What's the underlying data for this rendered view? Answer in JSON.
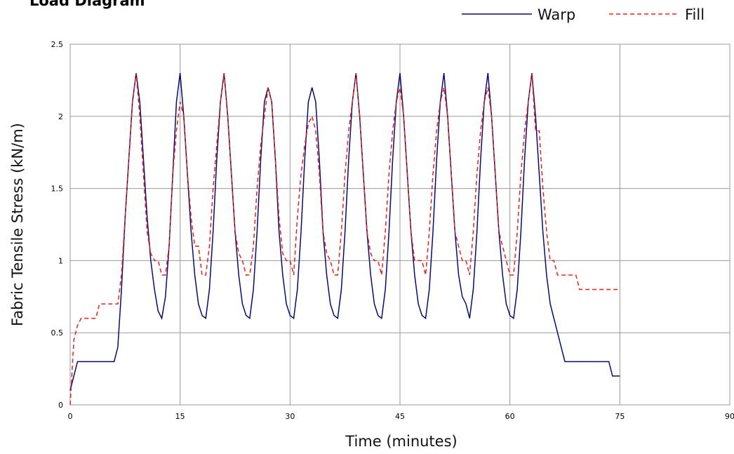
{
  "chart_data": {
    "type": "line",
    "title": "Load Diagram",
    "x_label": "Time (minutes)",
    "y_label": "Fabric Tensile Stress (kN/m)",
    "x": [
      0,
      0.5,
      1,
      1.5,
      2,
      2.5,
      3,
      3.5,
      4,
      4.5,
      5,
      5.5,
      6,
      6.5,
      7,
      7.5,
      8,
      8.5,
      9,
      9.5,
      10,
      10.5,
      11,
      11.5,
      12,
      12.5,
      13,
      13.5,
      14,
      14.5,
      15,
      15.5,
      16,
      16.5,
      17,
      17.5,
      18,
      18.5,
      19,
      19.5,
      20,
      20.5,
      21,
      21.5,
      22,
      22.5,
      23,
      23.5,
      24,
      24.5,
      25,
      25.5,
      26,
      26.5,
      27,
      27.5,
      28,
      28.5,
      29,
      29.5,
      30,
      30.5,
      31,
      31.5,
      32,
      32.5,
      33,
      33.5,
      34,
      34.5,
      35,
      35.5,
      36,
      36.5,
      37,
      37.5,
      38,
      38.5,
      39,
      39.5,
      40,
      40.5,
      41,
      41.5,
      42,
      42.5,
      43,
      43.5,
      44,
      44.5,
      45,
      45.5,
      46,
      46.5,
      47,
      47.5,
      48,
      48.5,
      49,
      49.5,
      50,
      50.5,
      51,
      51.5,
      52,
      52.5,
      53,
      53.5,
      54,
      54.5,
      55,
      55.5,
      56,
      56.5,
      57,
      57.5,
      58,
      58.5,
      59,
      59.5,
      60,
      60.5,
      61,
      61.5,
      62,
      62.5,
      63,
      63.5,
      64,
      64.5,
      65,
      65.5,
      66,
      66.5,
      67,
      67.5,
      68,
      68.5,
      69,
      69.5,
      70,
      70.5,
      71,
      71.5,
      72,
      72.5,
      73,
      73.5,
      74,
      74.5,
      75
    ],
    "series": [
      {
        "name": "Warp",
        "color": "#0a0a6e",
        "dash": false,
        "values": [
          0.1,
          0.2,
          0.3,
          0.3,
          0.3,
          0.3,
          0.3,
          0.3,
          0.3,
          0.3,
          0.3,
          0.3,
          0.3,
          0.4,
          0.8,
          1.3,
          1.7,
          2.1,
          2.3,
          2.1,
          1.7,
          1.3,
          1.0,
          0.8,
          0.65,
          0.6,
          0.75,
          1.1,
          1.6,
          2.1,
          2.3,
          2.0,
          1.6,
          1.2,
          0.9,
          0.7,
          0.62,
          0.6,
          0.8,
          1.2,
          1.7,
          2.1,
          2.3,
          2.0,
          1.6,
          1.2,
          0.9,
          0.7,
          0.62,
          0.6,
          0.8,
          1.2,
          1.7,
          2.1,
          2.2,
          2.1,
          1.7,
          1.2,
          0.9,
          0.7,
          0.62,
          0.6,
          0.8,
          1.2,
          1.7,
          2.1,
          2.2,
          2.1,
          1.7,
          1.2,
          0.9,
          0.7,
          0.62,
          0.6,
          0.8,
          1.2,
          1.7,
          2.1,
          2.3,
          2.0,
          1.6,
          1.2,
          0.9,
          0.7,
          0.62,
          0.6,
          0.8,
          1.2,
          1.7,
          2.1,
          2.3,
          2.0,
          1.6,
          1.2,
          0.9,
          0.7,
          0.62,
          0.6,
          0.8,
          1.2,
          1.7,
          2.1,
          2.3,
          2.0,
          1.6,
          1.2,
          0.9,
          0.75,
          0.7,
          0.6,
          0.8,
          1.2,
          1.7,
          2.1,
          2.3,
          2.0,
          1.6,
          1.2,
          0.9,
          0.7,
          0.62,
          0.6,
          0.8,
          1.2,
          1.7,
          2.1,
          2.3,
          2.0,
          1.6,
          1.2,
          0.9,
          0.7,
          0.6,
          0.5,
          0.4,
          0.3,
          0.3,
          0.3,
          0.3,
          0.3,
          0.3,
          0.3,
          0.3,
          0.3,
          0.3,
          0.3,
          0.3,
          0.3,
          0.2,
          0.2,
          0.2
        ]
      },
      {
        "name": "Fill",
        "color": "#e8211e",
        "dash": true,
        "values": [
          0,
          0.45,
          0.55,
          0.6,
          0.6,
          0.6,
          0.6,
          0.6,
          0.7,
          0.7,
          0.7,
          0.7,
          0.7,
          0.7,
          0.9,
          1.3,
          1.7,
          2.1,
          2.3,
          2.0,
          1.6,
          1.2,
          1.05,
          1.0,
          1.0,
          0.9,
          0.9,
          1.1,
          1.6,
          1.9,
          2.1,
          2.0,
          1.6,
          1.3,
          1.1,
          1.1,
          0.9,
          0.9,
          1.1,
          1.5,
          1.8,
          2.1,
          2.3,
          2.0,
          1.6,
          1.2,
          1.05,
          1.0,
          0.9,
          0.9,
          1.1,
          1.5,
          1.8,
          2.0,
          2.2,
          2.1,
          1.7,
          1.3,
          1.05,
          1.0,
          1.0,
          0.9,
          1.3,
          1.6,
          1.8,
          1.95,
          2.0,
          1.9,
          1.6,
          1.2,
          1.05,
          1.0,
          0.9,
          0.9,
          1.2,
          1.6,
          1.9,
          2.1,
          2.3,
          2.0,
          1.6,
          1.2,
          1.05,
          1.0,
          1.0,
          0.9,
          1.2,
          1.6,
          1.9,
          2.1,
          2.2,
          2.0,
          1.6,
          1.2,
          1.0,
          1.0,
          1.0,
          0.9,
          1.2,
          1.6,
          1.9,
          2.1,
          2.2,
          2.0,
          1.6,
          1.2,
          1.1,
          1.0,
          1.0,
          0.9,
          1.2,
          1.6,
          1.9,
          2.1,
          2.2,
          2.0,
          1.6,
          1.2,
          1.1,
          1.0,
          0.9,
          0.9,
          1.2,
          1.6,
          1.9,
          2.1,
          2.3,
          1.9,
          1.9,
          1.5,
          1.2,
          1.0,
          1.0,
          0.9,
          0.9,
          0.9,
          0.9,
          0.9,
          0.9,
          0.8,
          0.8,
          0.8,
          0.8,
          0.8,
          0.8,
          0.8,
          0.8,
          0.8,
          0.8,
          0.8,
          0.8
        ]
      }
    ],
    "xlim": [
      0,
      90
    ],
    "xticks": [
      0,
      15,
      30,
      45,
      60,
      75,
      90
    ],
    "ylim": [
      0,
      2.5
    ],
    "yticks": [
      0,
      0.5,
      1,
      1.5,
      2,
      2.5
    ],
    "grid": true,
    "legend": "top-right"
  }
}
